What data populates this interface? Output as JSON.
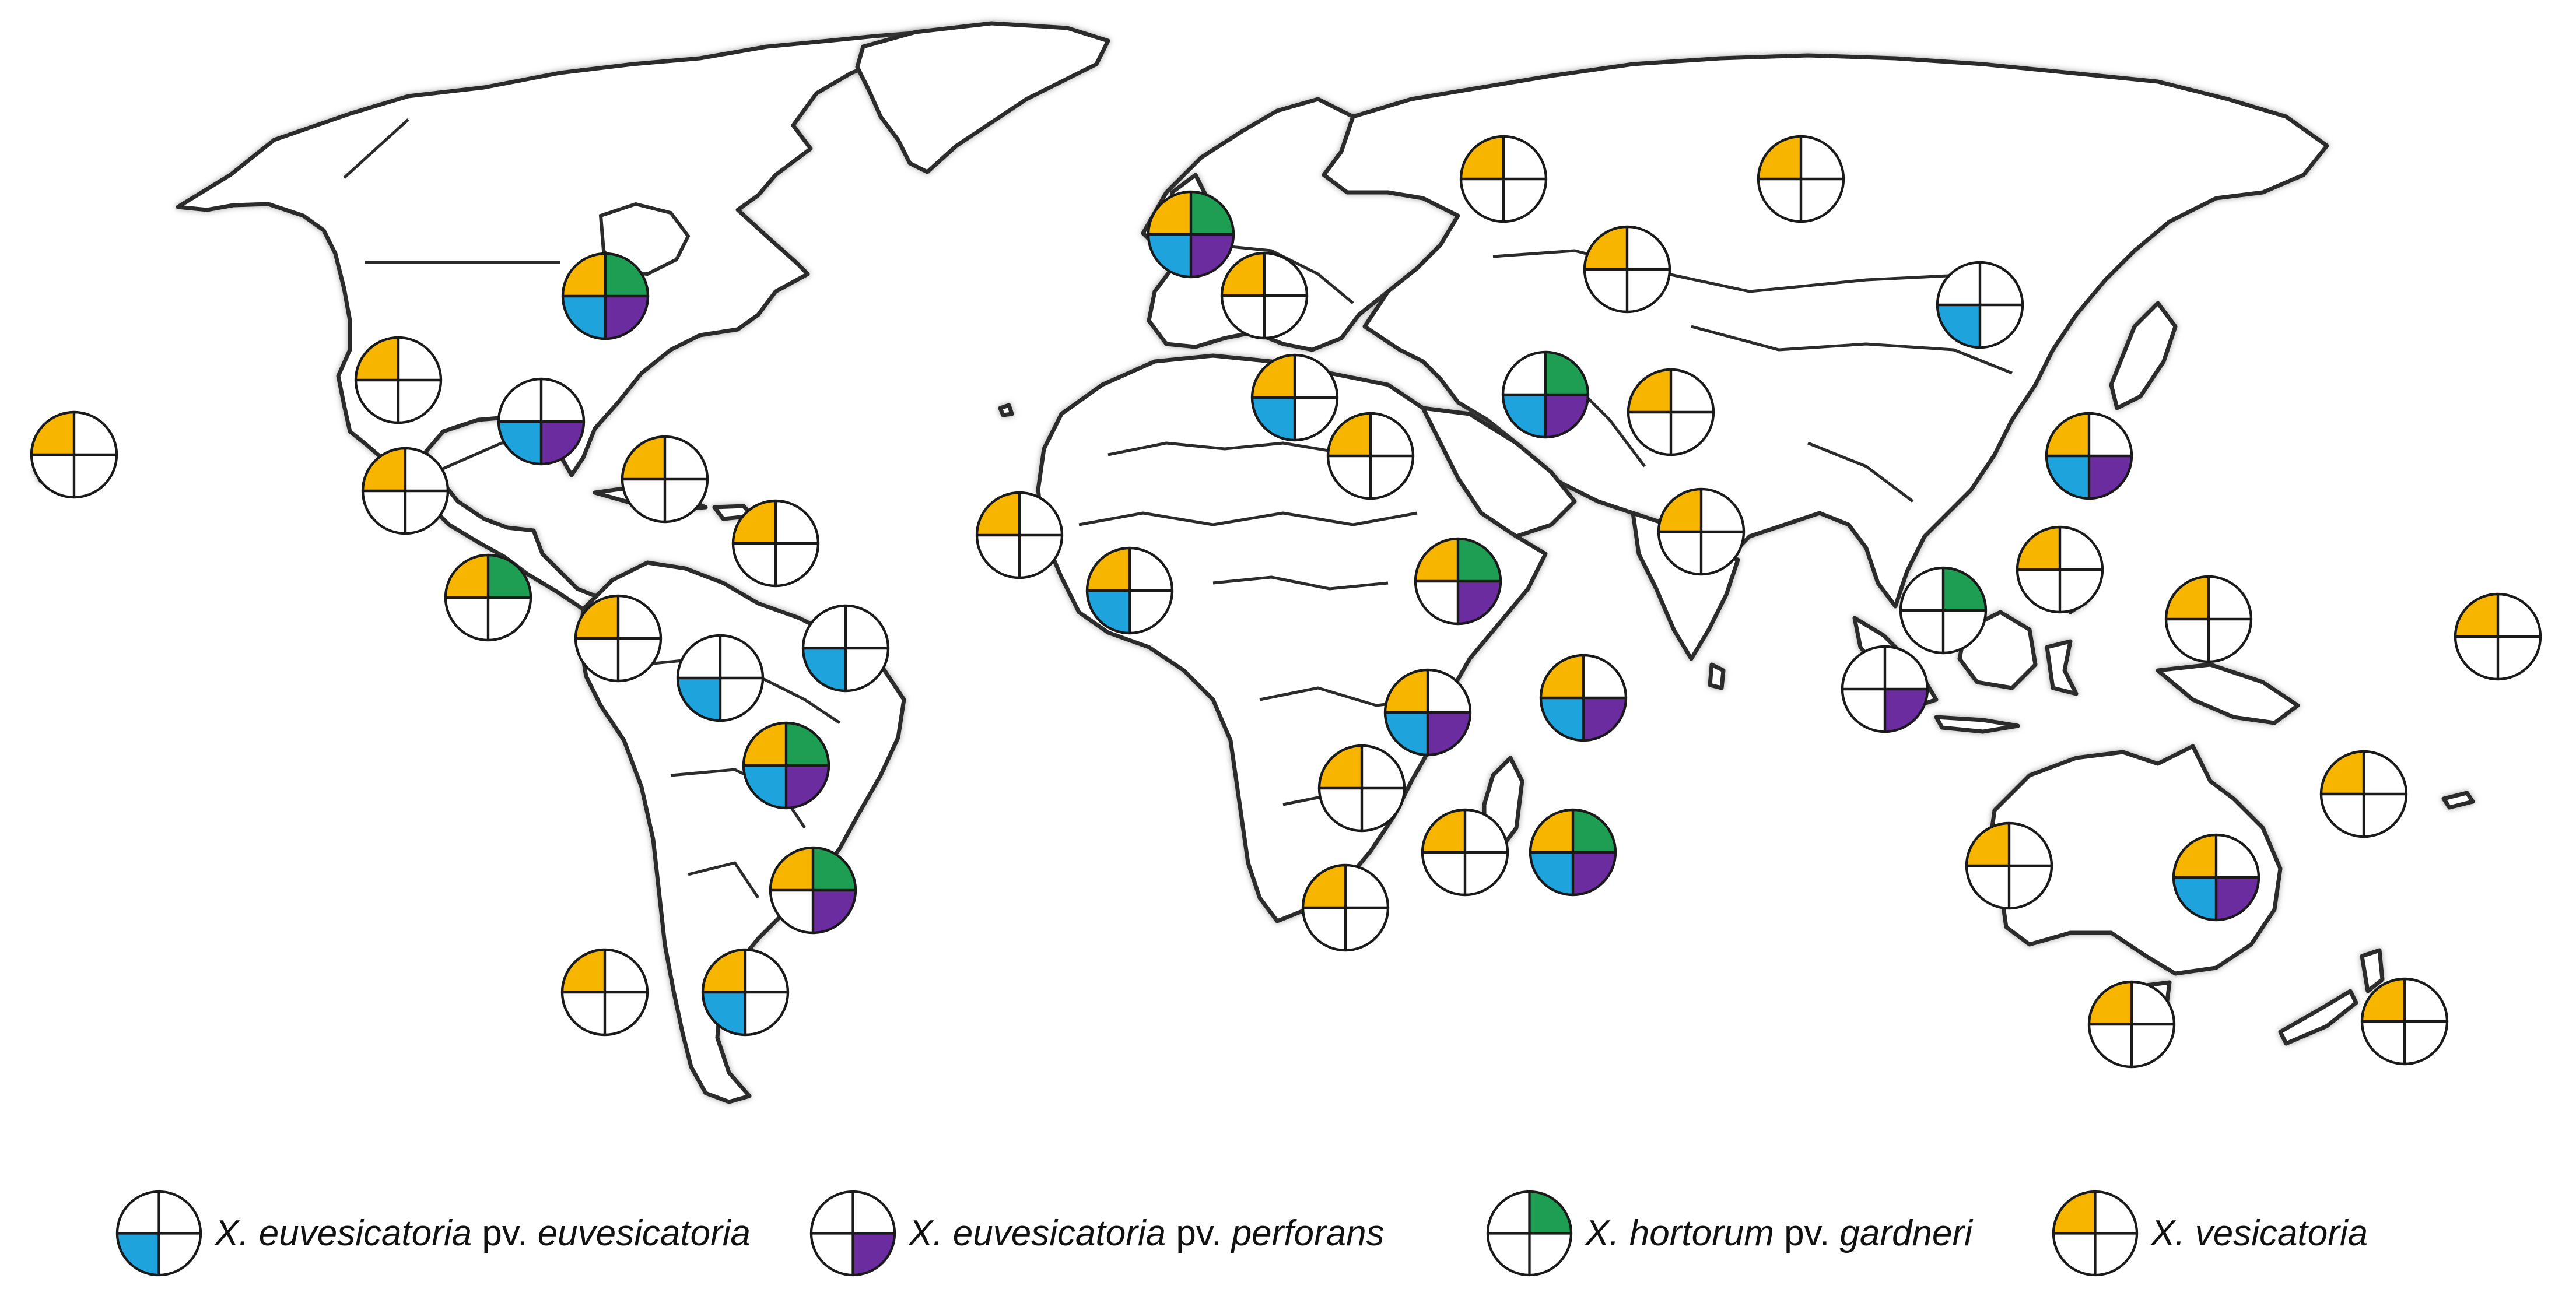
{
  "colors": {
    "euvesicatoria": "#1fa3dc",
    "perforans": "#6a2c9e",
    "gardneri": "#1d9e52",
    "vesicatoria": "#f7b500",
    "outline": "#1a1a1a"
  },
  "legend": [
    {
      "key": "euvesicatoria",
      "species": "X. euvesicatoria",
      "pv": " pv. ",
      "pathovar": "euvesicatoria"
    },
    {
      "key": "perforans",
      "species": "X. euvesicatoria",
      "pv": " pv. ",
      "pathovar": "perforans"
    },
    {
      "key": "gardneri",
      "species": "X. hortorum",
      "pv": " pv. ",
      "pathovar": "gardneri"
    },
    {
      "key": "vesicatoria",
      "species": "X. vesicatoria",
      "pv": "",
      "pathovar": ""
    }
  ],
  "locations": [
    {
      "name": "hawaii",
      "tl": 1,
      "tr": 0,
      "bl": 0,
      "br": 0
    },
    {
      "name": "western-usa",
      "tl": 1,
      "tr": 0,
      "bl": 0,
      "br": 0
    },
    {
      "name": "northeastern-usa",
      "tl": 1,
      "tr": 1,
      "bl": 1,
      "br": 1
    },
    {
      "name": "southeastern-usa",
      "tl": 0,
      "tr": 0,
      "bl": 1,
      "br": 1
    },
    {
      "name": "mexico",
      "tl": 1,
      "tr": 0,
      "bl": 0,
      "br": 0
    },
    {
      "name": "caribbean",
      "tl": 1,
      "tr": 0,
      "bl": 0,
      "br": 0
    },
    {
      "name": "atlantic-islands",
      "tl": 1,
      "tr": 0,
      "bl": 0,
      "br": 0
    },
    {
      "name": "central-america",
      "tl": 1,
      "tr": 1,
      "bl": 0,
      "br": 0
    },
    {
      "name": "venezuela",
      "tl": 1,
      "tr": 0,
      "bl": 0,
      "br": 0
    },
    {
      "name": "guiana",
      "tl": 0,
      "tr": 0,
      "bl": 1,
      "br": 0
    },
    {
      "name": "northeast-brazil",
      "tl": 0,
      "tr": 0,
      "bl": 1,
      "br": 0
    },
    {
      "name": "central-brazil",
      "tl": 1,
      "tr": 1,
      "bl": 1,
      "br": 1
    },
    {
      "name": "southern-brazil",
      "tl": 1,
      "tr": 1,
      "bl": 0,
      "br": 1
    },
    {
      "name": "chile",
      "tl": 1,
      "tr": 0,
      "bl": 0,
      "br": 0
    },
    {
      "name": "argentina",
      "tl": 1,
      "tr": 0,
      "bl": 1,
      "br": 0
    },
    {
      "name": "western-europe",
      "tl": 1,
      "tr": 1,
      "bl": 1,
      "br": 1
    },
    {
      "name": "balkans",
      "tl": 1,
      "tr": 0,
      "bl": 0,
      "br": 0
    },
    {
      "name": "russia-west",
      "tl": 1,
      "tr": 0,
      "bl": 0,
      "br": 0
    },
    {
      "name": "russia-east",
      "tl": 1,
      "tr": 0,
      "bl": 0,
      "br": 0
    },
    {
      "name": "central-asia",
      "tl": 1,
      "tr": 0,
      "bl": 0,
      "br": 0
    },
    {
      "name": "north-china",
      "tl": 0,
      "tr": 0,
      "bl": 1,
      "br": 0
    },
    {
      "name": "north-africa",
      "tl": 1,
      "tr": 0,
      "bl": 1,
      "br": 0
    },
    {
      "name": "middle-east",
      "tl": 1,
      "tr": 0,
      "bl": 0,
      "br": 0
    },
    {
      "name": "iran",
      "tl": 0,
      "tr": 1,
      "bl": 1,
      "br": 1
    },
    {
      "name": "pakistan",
      "tl": 1,
      "tr": 0,
      "bl": 0,
      "br": 0
    },
    {
      "name": "india",
      "tl": 1,
      "tr": 0,
      "bl": 0,
      "br": 0
    },
    {
      "name": "south-china",
      "tl": 1,
      "tr": 0,
      "bl": 1,
      "br": 1
    },
    {
      "name": "philippines",
      "tl": 1,
      "tr": 0,
      "bl": 0,
      "br": 0
    },
    {
      "name": "malaysia",
      "tl": 0,
      "tr": 1,
      "bl": 0,
      "br": 0
    },
    {
      "name": "indonesia",
      "tl": 0,
      "tr": 0,
      "bl": 0,
      "br": 1
    },
    {
      "name": "west-africa-coast",
      "tl": 1,
      "tr": 0,
      "bl": 0,
      "br": 0
    },
    {
      "name": "west-africa",
      "tl": 1,
      "tr": 0,
      "bl": 1,
      "br": 0
    },
    {
      "name": "ethiopia",
      "tl": 1,
      "tr": 1,
      "bl": 0,
      "br": 1
    },
    {
      "name": "east-africa",
      "tl": 1,
      "tr": 0,
      "bl": 1,
      "br": 1
    },
    {
      "name": "zambia",
      "tl": 1,
      "tr": 0,
      "bl": 0,
      "br": 0
    },
    {
      "name": "seychelles",
      "tl": 1,
      "tr": 0,
      "bl": 1,
      "br": 1
    },
    {
      "name": "madagascar",
      "tl": 1,
      "tr": 0,
      "bl": 0,
      "br": 0
    },
    {
      "name": "reunion-mauritius",
      "tl": 1,
      "tr": 1,
      "bl": 1,
      "br": 1
    },
    {
      "name": "south-africa",
      "tl": 1,
      "tr": 0,
      "bl": 0,
      "br": 0
    },
    {
      "name": "new-guinea",
      "tl": 1,
      "tr": 0,
      "bl": 0,
      "br": 0
    },
    {
      "name": "pacific-islands",
      "tl": 1,
      "tr": 0,
      "bl": 0,
      "br": 0
    },
    {
      "name": "new-caledonia",
      "tl": 1,
      "tr": 0,
      "bl": 0,
      "br": 0
    },
    {
      "name": "western-australia",
      "tl": 1,
      "tr": 0,
      "bl": 0,
      "br": 0
    },
    {
      "name": "eastern-australia",
      "tl": 1,
      "tr": 0,
      "bl": 1,
      "br": 1
    },
    {
      "name": "tasmania",
      "tl": 1,
      "tr": 0,
      "bl": 0,
      "br": 0
    },
    {
      "name": "new-zealand",
      "tl": 1,
      "tr": 0,
      "bl": 0,
      "br": 0
    }
  ]
}
